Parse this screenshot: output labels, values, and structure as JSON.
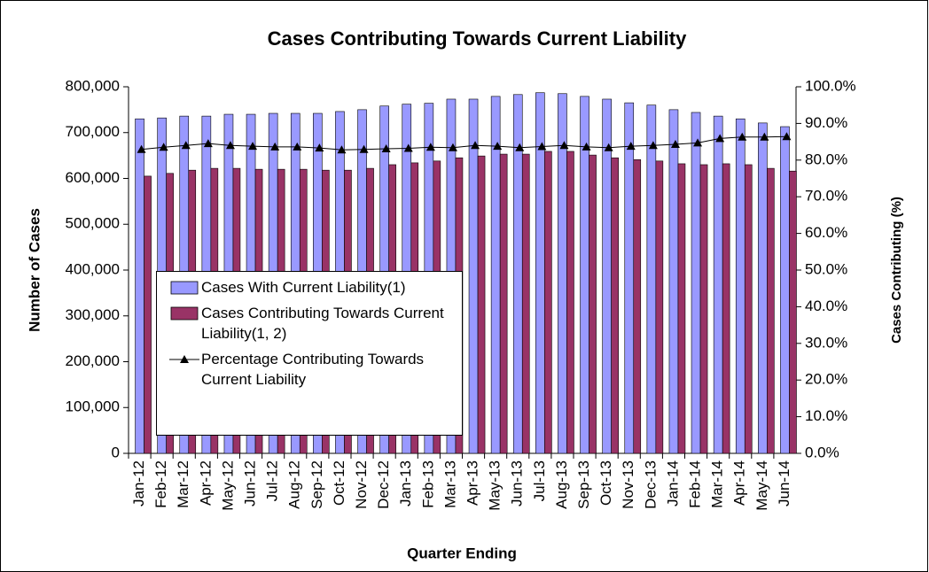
{
  "chart_data": {
    "type": "bar",
    "title": "Cases Contributing Towards Current Liability",
    "x_label": "Quarter Ending",
    "y_label": "Number of Cases",
    "y2_label": "Cases Contributing (%)",
    "categories": [
      "Jan-12",
      "Feb-12",
      "Mar-12",
      "Apr-12",
      "May-12",
      "Jun-12",
      "Jul-12",
      "Aug-12",
      "Sep-12",
      "Oct-12",
      "Nov-12",
      "Dec-12",
      "Jan-13",
      "Feb-13",
      "Mar-13",
      "Apr-13",
      "May-13",
      "Jun-13",
      "Jul-13",
      "Aug-13",
      "Sep-13",
      "Oct-13",
      "Nov-13",
      "Dec-13",
      "Jan-14",
      "Feb-14",
      "Mar-14",
      "Apr-14",
      "May-14",
      "Jun-14"
    ],
    "series": [
      {
        "name": "Cases With Current Liability(1)",
        "type": "bar",
        "color": "#9999ff",
        "values": [
          730000,
          732000,
          736000,
          736000,
          740000,
          740000,
          742000,
          742000,
          742000,
          746000,
          750000,
          758000,
          762000,
          764000,
          773000,
          773000,
          779000,
          783000,
          787000,
          785000,
          779000,
          773000,
          765000,
          760000,
          750000,
          744000,
          736000,
          730000,
          721000,
          713000
        ]
      },
      {
        "name": "Cases Contributing Towards Current Liability(1, 2)",
        "type": "bar",
        "color": "#993366",
        "values": [
          605000,
          611000,
          618000,
          622000,
          622000,
          620000,
          620000,
          620000,
          618000,
          618000,
          622000,
          630000,
          634000,
          638000,
          645000,
          649000,
          653000,
          653000,
          659000,
          659000,
          651000,
          645000,
          641000,
          638000,
          632000,
          630000,
          632000,
          630000,
          622000,
          616000
        ]
      },
      {
        "name": "Percentage Contributing Towards Current Liability",
        "type": "line",
        "axis": "y2",
        "color": "#000000",
        "values": [
          82.9,
          83.5,
          84.0,
          84.5,
          84.0,
          83.8,
          83.6,
          83.6,
          83.3,
          82.8,
          82.9,
          83.1,
          83.2,
          83.5,
          83.4,
          84.0,
          83.8,
          83.4,
          83.7,
          84.0,
          83.6,
          83.4,
          83.8,
          84.0,
          84.3,
          84.7,
          85.9,
          86.3,
          86.3,
          86.4
        ]
      }
    ],
    "ylim": [
      0,
      800000
    ],
    "yticks": [
      0,
      {
        "value": 100000,
        "label": "100,000"
      },
      {
        "value": 200000,
        "label": "200,000"
      },
      {
        "value": 300000,
        "label": "300,000"
      },
      {
        "value": 400000,
        "label": "400,000"
      },
      {
        "value": 500000,
        "label": "500,000"
      },
      {
        "value": 600000,
        "label": "600,000"
      },
      {
        "value": 700000,
        "label": "700,000"
      },
      {
        "value": 800000,
        "label": "800,000"
      }
    ],
    "y2lim": [
      0,
      100
    ],
    "y2ticks": [
      {
        "value": 0,
        "label": "0.0%"
      },
      {
        "value": 10,
        "label": "10.0%"
      },
      {
        "value": 20,
        "label": "20.0%"
      },
      {
        "value": 30,
        "label": "30.0%"
      },
      {
        "value": 40,
        "label": "40.0%"
      },
      {
        "value": 50,
        "label": "50.0%"
      },
      {
        "value": 60,
        "label": "60.0%"
      },
      {
        "value": 70,
        "label": "70.0%"
      },
      {
        "value": 80,
        "label": "80.0%"
      },
      {
        "value": 90,
        "label": "90.0%"
      },
      {
        "value": 100,
        "label": "100.0%"
      }
    ],
    "grid": false
  }
}
